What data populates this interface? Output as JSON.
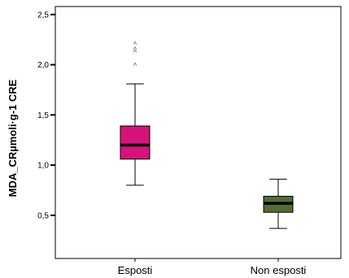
{
  "chart_data": {
    "type": "boxplot",
    "title": "",
    "xlabel": "",
    "ylabel": "MDA_CRµmoli·g-1 CRE",
    "ylim": [
      0.07,
      2.58
    ],
    "yticks": [
      {
        "value": 0.5,
        "label": "0,5"
      },
      {
        "value": 1.0,
        "label": "1,0"
      },
      {
        "value": 1.5,
        "label": "1,5"
      },
      {
        "value": 2.0,
        "label": "2,0"
      },
      {
        "value": 2.5,
        "label": "2,5"
      }
    ],
    "categories": [
      "Esposti",
      "Non esposti"
    ],
    "boxes": [
      {
        "category": "Esposti",
        "whisker_low": 0.8,
        "q1": 1.06,
        "median": 1.2,
        "q3": 1.39,
        "whisker_high": 1.81,
        "outliers": [
          2.0,
          2.13,
          2.16,
          2.21
        ],
        "color": "#d6137a"
      },
      {
        "category": "Non esposti",
        "whisker_low": 0.37,
        "q1": 0.53,
        "median": 0.62,
        "q3": 0.69,
        "whisker_high": 0.86,
        "outliers": [],
        "color": "#556b35"
      }
    ],
    "outlier_marker": "^",
    "grid": false
  }
}
